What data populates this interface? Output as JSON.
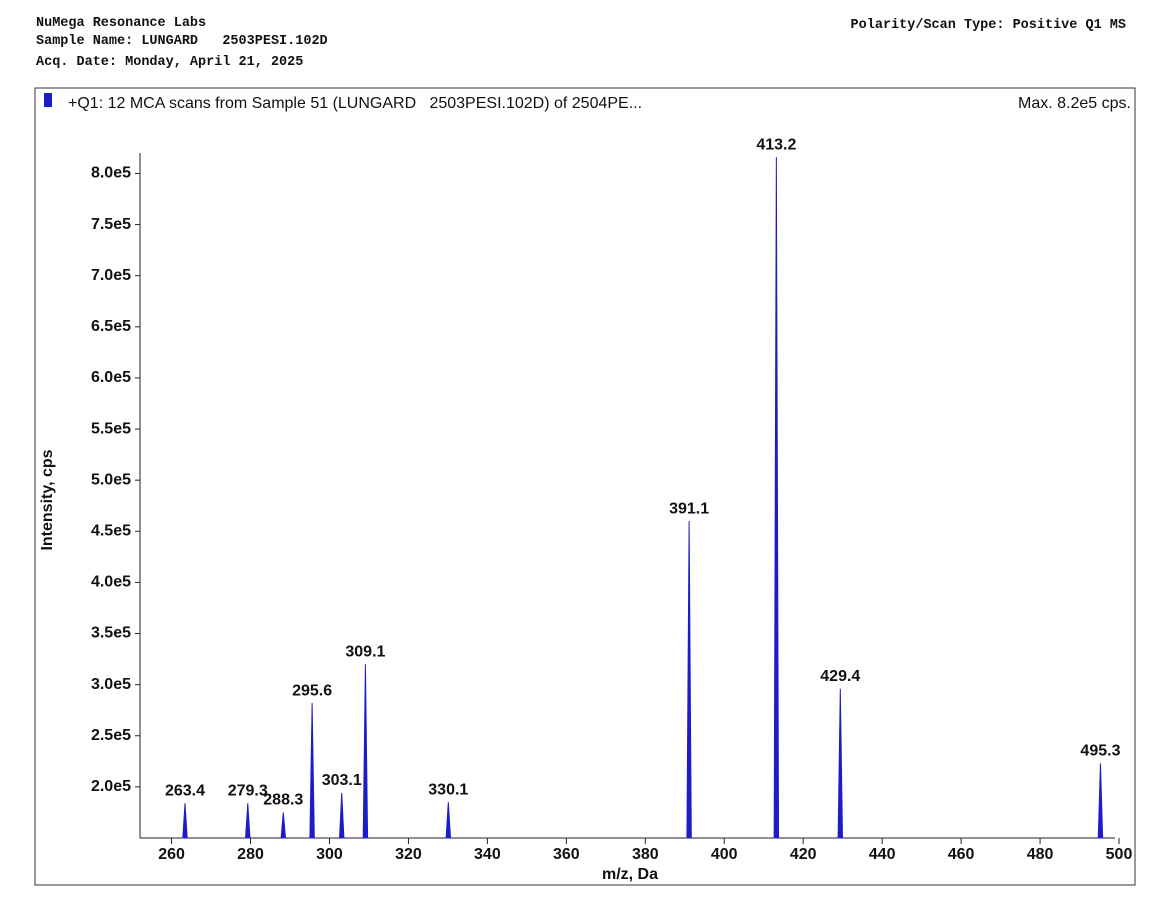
{
  "header": {
    "lab": "NuMega Resonance Labs",
    "sample": "Sample Name: LUNGARD   2503PESI.102D",
    "date": "Acq. Date: Monday, April 21, 2025",
    "scan_type": "Polarity/Scan Type: Positive Q1 MS"
  },
  "chart_data": {
    "type": "spectrum",
    "title": "+Q1: 12 MCA scans from Sample 51 (LUNGARD   2503PESI.102D) of 2504PE...",
    "annotation": "Max. 8.2e5 cps.",
    "x_label": "m/z, Da",
    "y_label": "Intensity, cps",
    "color": "#1c1cc8",
    "x": [
      263.4,
      279.3,
      288.3,
      295.6,
      303.1,
      309.1,
      330.1,
      391.1,
      413.2,
      429.4,
      495.3
    ],
    "values": [
      184000,
      184000,
      175000,
      282000,
      194000,
      320000,
      185000,
      460000,
      816000,
      296000,
      223000
    ],
    "xlim": [
      252,
      500
    ],
    "xticks": [
      260,
      280,
      300,
      320,
      340,
      360,
      380,
      400,
      420,
      440,
      460,
      480,
      500
    ],
    "ylim": [
      150000,
      820000
    ],
    "yticks": [
      {
        "value": 200000,
        "label": "2.0e5"
      },
      {
        "value": 250000,
        "label": "2.5e5"
      },
      {
        "value": 300000,
        "label": "3.0e5"
      },
      {
        "value": 350000,
        "label": "3.5e5"
      },
      {
        "value": 400000,
        "label": "4.0e5"
      },
      {
        "value": 450000,
        "label": "4.5e5"
      },
      {
        "value": 500000,
        "label": "5.0e5"
      },
      {
        "value": 550000,
        "label": "5.5e5"
      },
      {
        "value": 600000,
        "label": "6.0e5"
      },
      {
        "value": 650000,
        "label": "6.5e5"
      },
      {
        "value": 700000,
        "label": "7.0e5"
      },
      {
        "value": 750000,
        "label": "7.5e5"
      },
      {
        "value": 800000,
        "label": "8.0e5"
      }
    ]
  }
}
